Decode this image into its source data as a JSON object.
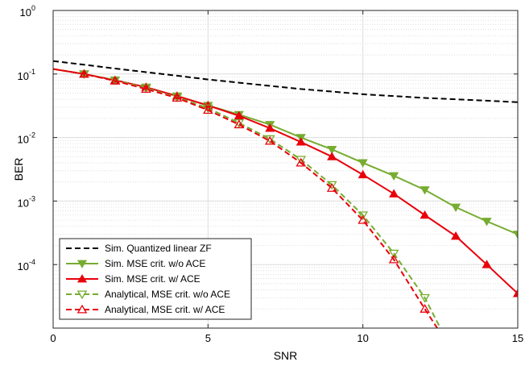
{
  "chart_data": {
    "type": "line",
    "title": "",
    "xlabel": "SNR",
    "ylabel": "BER",
    "xlim": [
      0,
      15
    ],
    "ylim": [
      1e-05,
      1
    ],
    "yscale": "log",
    "grid": true,
    "legend_position": "bottom-left",
    "x_ticks": [
      "0",
      "5",
      "10",
      "15"
    ],
    "y_ticks": [
      {
        "base": "10",
        "exp": "0"
      },
      {
        "base": "10",
        "exp": "-1"
      },
      {
        "base": "10",
        "exp": "-2"
      },
      {
        "base": "10",
        "exp": "-3"
      },
      {
        "base": "10",
        "exp": "-4"
      }
    ],
    "series": [
      {
        "name": "Sim. Quantized linear ZF",
        "color": "#000000",
        "dash": "dashed",
        "marker": "none",
        "x": [
          0,
          1,
          2,
          3,
          4,
          5,
          6,
          7,
          8,
          9,
          10,
          11,
          12,
          13,
          14,
          15
        ],
        "y": [
          0.16,
          0.14,
          0.122,
          0.107,
          0.094,
          0.082,
          0.073,
          0.065,
          0.058,
          0.053,
          0.048,
          0.045,
          0.042,
          0.04,
          0.038,
          0.036
        ]
      },
      {
        "name": "Sim. MSE crit. w/o ACE",
        "color": "#77ac30",
        "dash": "solid",
        "marker": "triangle-down",
        "x": [
          0,
          1,
          2,
          3,
          4,
          5,
          6,
          7,
          8,
          9,
          10,
          11,
          12,
          13,
          14,
          15
        ],
        "y": [
          0.12,
          0.1,
          0.08,
          0.062,
          0.045,
          0.032,
          0.023,
          0.016,
          0.01,
          0.0065,
          0.004,
          0.0025,
          0.0015,
          0.0008,
          0.00048,
          0.0003
        ]
      },
      {
        "name": "Sim. MSE crit. w/ ACE",
        "color": "#e8000b",
        "dash": "solid",
        "marker": "triangle-up",
        "x": [
          0,
          1,
          2,
          3,
          4,
          5,
          6,
          7,
          8,
          9,
          10,
          11,
          12,
          13,
          14,
          15
        ],
        "y": [
          0.12,
          0.1,
          0.08,
          0.062,
          0.045,
          0.032,
          0.022,
          0.014,
          0.0085,
          0.005,
          0.0026,
          0.0013,
          0.0006,
          0.00028,
          0.0001,
          3.5e-05
        ]
      },
      {
        "name": "Analytical, MSE crit. w/o ACE",
        "color": "#77ac30",
        "dash": "dashed",
        "marker": "triangle-down",
        "x": [
          0,
          1,
          2,
          3,
          4,
          5,
          6,
          7,
          8,
          9,
          10,
          11,
          12,
          12.5
        ],
        "y": [
          0.12,
          0.1,
          0.08,
          0.06,
          0.043,
          0.029,
          0.017,
          0.0095,
          0.0045,
          0.0018,
          0.0006,
          0.00015,
          3e-05,
          1e-05
        ]
      },
      {
        "name": "Analytical, MSE crit. w/ ACE",
        "color": "#e8000b",
        "dash": "dashed",
        "marker": "triangle-up",
        "x": [
          0,
          1,
          2,
          3,
          4,
          5,
          6,
          7,
          8,
          9,
          10,
          11,
          12,
          12.4
        ],
        "y": [
          0.12,
          0.1,
          0.078,
          0.058,
          0.042,
          0.027,
          0.016,
          0.0088,
          0.004,
          0.0016,
          0.0005,
          0.00012,
          2e-05,
          1e-05
        ]
      }
    ]
  }
}
